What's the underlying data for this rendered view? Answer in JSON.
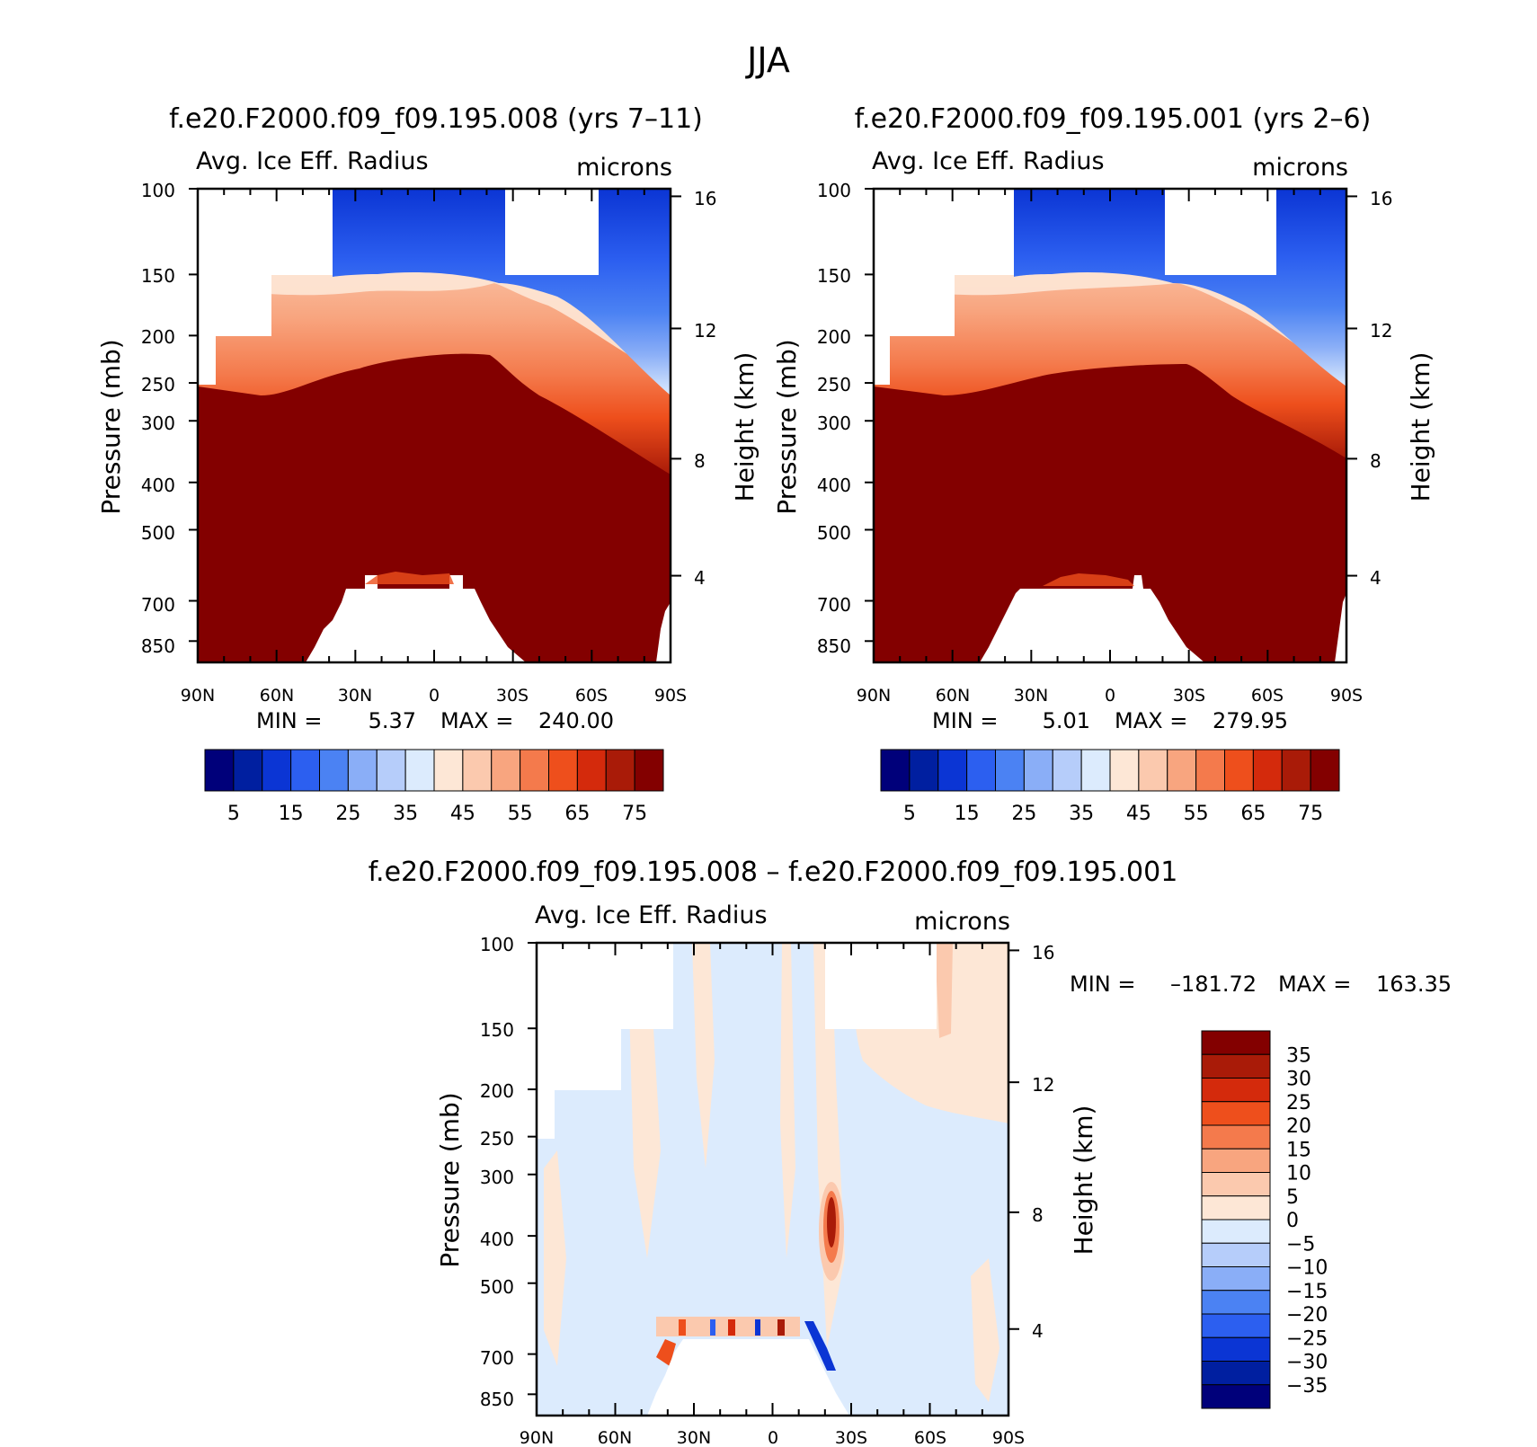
{
  "figure_title": "JJA",
  "chart_data": [
    {
      "type": "heatmap",
      "title": "f.e20.F2000.f09_f09.195.008 (yrs 7–11)",
      "variable": "Avg. Ice Eff. Radius",
      "units": "microns",
      "ylabel": "Pressure (mb)",
      "ylabel_right": "Height (km)",
      "x_ticks": [
        "90N",
        "60N",
        "30N",
        "0",
        "30S",
        "60S",
        "90S"
      ],
      "y_ticks": [
        "100",
        "150",
        "200",
        "250",
        "300",
        "400",
        "500",
        "700",
        "850"
      ],
      "y_ticks_right": [
        "16",
        "12",
        "8",
        "4"
      ],
      "stats": {
        "min_label": "MIN =",
        "min": "5.37",
        "max_label": "MAX =",
        "max": "240.00"
      },
      "colorbar": {
        "levels": [
          5,
          10,
          15,
          20,
          25,
          30,
          35,
          40,
          45,
          50,
          55,
          60,
          65,
          70,
          75
        ],
        "labels": [
          "5",
          "15",
          "25",
          "35",
          "45",
          "55",
          "65",
          "75"
        ],
        "colors": [
          "#00007a",
          "#001fa0",
          "#0b35d4",
          "#2c5ff0",
          "#4b82f3",
          "#8aaef7",
          "#b6cdfa",
          "#dcebfd",
          "#fde7d6",
          "#fbc9ae",
          "#f8a57f",
          "#f47a4c",
          "#ee4f1c",
          "#d42a0c",
          "#a91b08",
          "#830000"
        ]
      }
    },
    {
      "type": "heatmap",
      "title": "f.e20.F2000.f09_f09.195.001 (yrs 2–6)",
      "variable": "Avg. Ice Eff. Radius",
      "units": "microns",
      "ylabel": "Pressure (mb)",
      "ylabel_right": "Height (km)",
      "x_ticks": [
        "90N",
        "60N",
        "30N",
        "0",
        "30S",
        "60S",
        "90S"
      ],
      "y_ticks": [
        "100",
        "150",
        "200",
        "250",
        "300",
        "400",
        "500",
        "700",
        "850"
      ],
      "y_ticks_right": [
        "16",
        "12",
        "8",
        "4"
      ],
      "stats": {
        "min_label": "MIN =",
        "min": "5.01",
        "max_label": "MAX =",
        "max": "279.95"
      },
      "colorbar": {
        "levels": [
          5,
          10,
          15,
          20,
          25,
          30,
          35,
          40,
          45,
          50,
          55,
          60,
          65,
          70,
          75
        ],
        "labels": [
          "5",
          "15",
          "25",
          "35",
          "45",
          "55",
          "65",
          "75"
        ],
        "colors": [
          "#00007a",
          "#001fa0",
          "#0b35d4",
          "#2c5ff0",
          "#4b82f3",
          "#8aaef7",
          "#b6cdfa",
          "#dcebfd",
          "#fde7d6",
          "#fbc9ae",
          "#f8a57f",
          "#f47a4c",
          "#ee4f1c",
          "#d42a0c",
          "#a91b08",
          "#830000"
        ]
      }
    },
    {
      "type": "heatmap",
      "title": "f.e20.F2000.f09_f09.195.008 – f.e20.F2000.f09_f09.195.001",
      "variable": "Avg. Ice Eff. Radius",
      "units": "microns",
      "ylabel": "Pressure (mb)",
      "ylabel_right": "Height (km)",
      "x_ticks": [
        "90N",
        "60N",
        "30N",
        "0",
        "30S",
        "60S",
        "90S"
      ],
      "y_ticks": [
        "100",
        "150",
        "200",
        "250",
        "300",
        "400",
        "500",
        "700",
        "850"
      ],
      "y_ticks_right": [
        "16",
        "12",
        "8",
        "4"
      ],
      "stats": {
        "min_label": "MIN =",
        "min": "–181.72",
        "max_label": "MAX =",
        "max": "163.35"
      },
      "colorbar": {
        "levels": [
          35,
          30,
          25,
          20,
          15,
          10,
          5,
          0,
          -5,
          -10,
          -15,
          -20,
          -25,
          -30,
          -35
        ],
        "labels": [
          "35",
          "30",
          "25",
          "20",
          "15",
          "10",
          "5",
          "0",
          "−5",
          "−10",
          "−15",
          "−20",
          "−25",
          "−30",
          "−35"
        ],
        "colors": [
          "#830000",
          "#a91b08",
          "#d42a0c",
          "#ee4f1c",
          "#f47a4c",
          "#f8a57f",
          "#fbc9ae",
          "#fde7d6",
          "#dcebfd",
          "#b6cdfa",
          "#8aaef7",
          "#4b82f3",
          "#2c5ff0",
          "#0b35d4",
          "#001fa0",
          "#00007a"
        ]
      }
    }
  ]
}
